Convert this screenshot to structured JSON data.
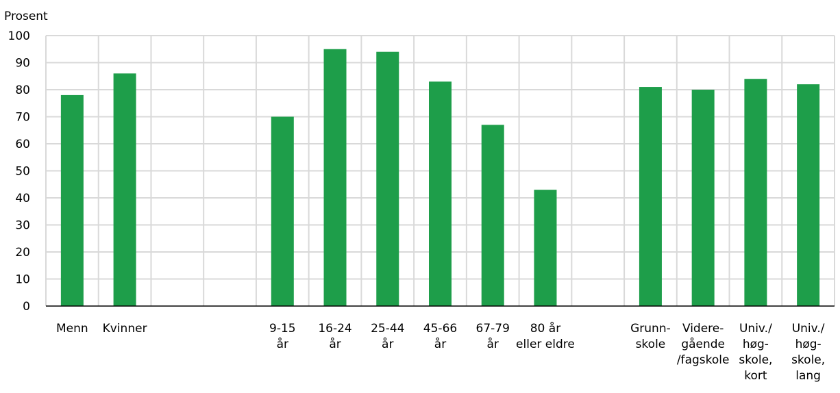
{
  "chart_data": {
    "type": "bar",
    "ylabel": "Prosent",
    "ylim": [
      0,
      100
    ],
    "yticks": [
      0,
      10,
      20,
      30,
      40,
      50,
      60,
      70,
      80,
      90,
      100
    ],
    "grid": true,
    "bar_color": "#1e9e4a",
    "grid_color": "#d9d9d9",
    "categories": [
      [
        "Menn"
      ],
      [
        "Kvinner"
      ],
      [],
      [],
      [
        "9-15",
        "år"
      ],
      [
        "16-24",
        "år"
      ],
      [
        "25-44",
        "år"
      ],
      [
        "45-66",
        "år"
      ],
      [
        "67-79",
        "år"
      ],
      [
        "80 år",
        "eller eldre"
      ],
      [],
      [
        "Grunn-",
        "skole"
      ],
      [
        "Videre-",
        "gående",
        "/fagskole"
      ],
      [
        "Univ./",
        "høg-",
        "skole,",
        "kort"
      ],
      [
        "Univ./",
        "høg-",
        "skole,",
        "lang"
      ]
    ],
    "values": [
      78,
      86,
      null,
      null,
      70,
      95,
      94,
      83,
      67,
      43,
      null,
      81,
      80,
      84,
      82
    ]
  }
}
